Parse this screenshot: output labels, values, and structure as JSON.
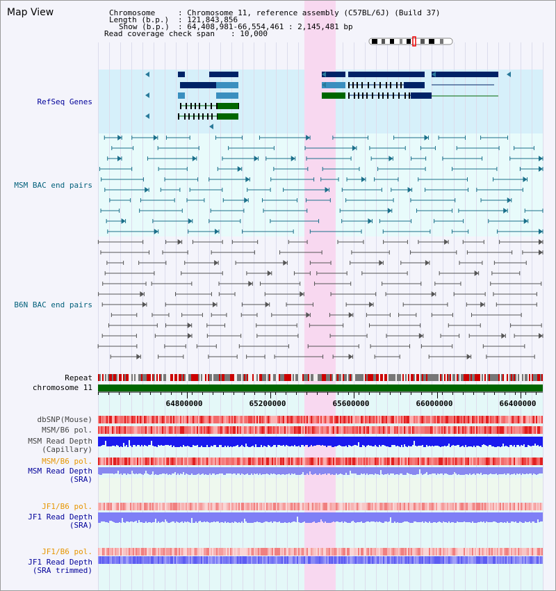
{
  "page_title": "Map View",
  "info": {
    "chromosome_label": "Chromosome",
    "chromosome_value": ": Chromosome 11, reference assembly (C57BL/6J) (Build 37)",
    "length_label": "Length (b.p.)",
    "length_value": ": 121,843,856",
    "show_label": "Show (b.p.)",
    "show_value": ": 64,408,981-66,554,461 : 2,145,481 bp",
    "coverage_label": "Read coverage check span",
    "coverage_value": ": 10,000"
  },
  "tracks": {
    "refseq": "RefSeq Genes",
    "msm_bac": "MSM BAC end pairs",
    "b6n_bac": "B6N BAC end pairs",
    "repeat": "Repeat",
    "chromosome": "chromosome 11",
    "dbsnp": "dbSNP(Mouse)",
    "msm_b6_pol_1": "MSM/B6 pol.",
    "msm_depth_cap_1": "MSM Read Depth",
    "msm_depth_cap_2": "(Capillary)",
    "msm_b6_pol_2": "MSM/B6 pol.",
    "msm_depth_sra_1": "MSM Read Depth",
    "msm_depth_sra_2": "(SRA)",
    "jf1_b6_pol_1": "JF1/B6 pol.",
    "jf1_depth_sra_1": "JF1 Read Depth",
    "jf1_depth_sra_2": "(SRA)",
    "jf1_b6_pol_2": "JF1/B6 pol.",
    "jf1_depth_trim_1": "JF1 Read Depth",
    "jf1_depth_trim_2": "(SRA trimmed)"
  },
  "axis_ticks": [
    "64800000",
    "65200000",
    "65600000",
    "66000000",
    "66400000"
  ],
  "colors": {
    "refseq_bg": "#d6f0fa",
    "msm_bg": "#e8fbfb",
    "highlight": "#f8d8f0",
    "gene_dark": "#002266",
    "gene_mid": "#3a8fbf",
    "gene_green": "#006600",
    "msm_line": "#1a6f8a",
    "b6n_line": "#555555",
    "depth_blue": "#1a1aee",
    "depth_light": "#7f7ff6",
    "label_navy": "#000099",
    "label_orange": "#e69500",
    "label_teal": "#005f7a"
  }
}
